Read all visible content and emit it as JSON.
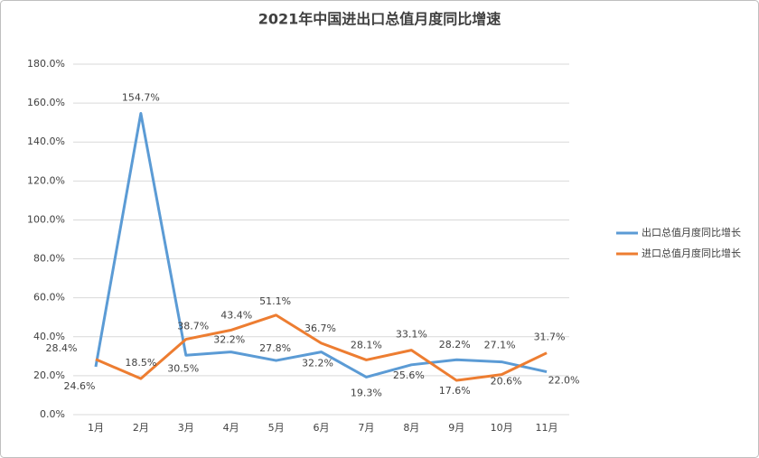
{
  "chart_data": {
    "type": "line",
    "title": "2021年中国进出口总值月度同比增速",
    "categories": [
      "1月",
      "2月",
      "3月",
      "4月",
      "5月",
      "6月",
      "7月",
      "8月",
      "9月",
      "10月",
      "11月"
    ],
    "series": [
      {
        "name": "出口总值月度同比增长",
        "color": "#5b9bd5",
        "values": [
          24.6,
          154.7,
          30.5,
          32.2,
          27.8,
          32.2,
          19.3,
          25.6,
          28.2,
          27.1,
          22.0
        ],
        "value_labels": [
          "24.6%",
          "154.7%",
          "30.5%",
          "32.2%",
          "27.8%",
          "32.2%",
          "19.3%",
          "25.6%",
          "28.2%",
          "27.1%",
          "22.0%"
        ]
      },
      {
        "name": "进口总值月度同比增长",
        "color": "#ed7d31",
        "values": [
          28.4,
          18.5,
          38.7,
          43.4,
          51.1,
          36.7,
          28.1,
          33.1,
          17.6,
          20.6,
          31.7
        ],
        "value_labels": [
          "28.4%",
          "18.5%",
          "38.7%",
          "43.4%",
          "51.1%",
          "36.7%",
          "28.1%",
          "33.1%",
          "17.6%",
          "20.6%",
          "31.7%"
        ]
      }
    ],
    "ylim": [
      0,
      180
    ],
    "yticks": [
      {
        "value": 0,
        "label": "0.0%"
      },
      {
        "value": 20,
        "label": "20.0%"
      },
      {
        "value": 40,
        "label": "40.0%"
      },
      {
        "value": 60,
        "label": "60.0%"
      },
      {
        "value": 80,
        "label": "80.0%"
      },
      {
        "value": 100,
        "label": "100.0%"
      },
      {
        "value": 120,
        "label": "120.0%"
      },
      {
        "value": 140,
        "label": "140.0%"
      },
      {
        "value": 160,
        "label": "160.0%"
      },
      {
        "value": 180,
        "label": "180.0%"
      }
    ],
    "grid": true,
    "legend": "right"
  }
}
